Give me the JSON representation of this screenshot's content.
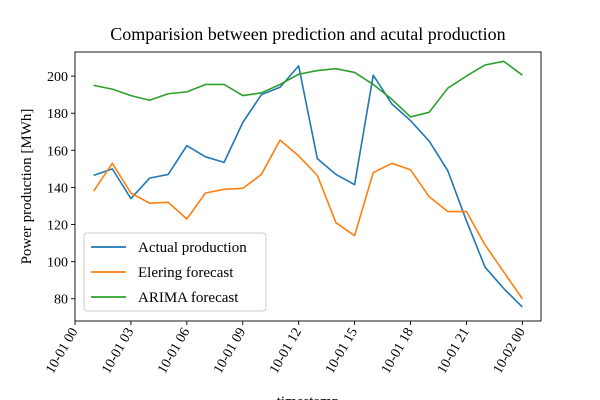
{
  "chart_data": {
    "type": "line",
    "title": "Comparision between prediction and acutal production",
    "xlabel": "timestamp",
    "ylabel": "Power production [MWh]",
    "x": [
      "10-01 01",
      "10-01 02",
      "10-01 03",
      "10-01 04",
      "10-01 05",
      "10-01 06",
      "10-01 07",
      "10-01 08",
      "10-01 09",
      "10-01 10",
      "10-01 11",
      "10-01 12",
      "10-01 13",
      "10-01 14",
      "10-01 15",
      "10-01 16",
      "10-01 17",
      "10-01 18",
      "10-01 19",
      "10-01 20",
      "10-01 21",
      "10-01 22",
      "10-01 23",
      "10-02 00"
    ],
    "xticks": [
      "10-01 00",
      "10-01 03",
      "10-01 06",
      "10-01 09",
      "10-01 12",
      "10-01 15",
      "10-01 18",
      "10-01 21",
      "10-02 00"
    ],
    "yticks": [
      80,
      100,
      120,
      140,
      160,
      180,
      200
    ],
    "ylim": [
      68,
      213
    ],
    "legend_position": "lower-left",
    "series": [
      {
        "name": "Actual production",
        "color": "#1f77b4",
        "values": [
          146.5,
          150,
          134,
          145,
          147,
          162.5,
          156.5,
          153.5,
          175,
          190,
          194,
          205.5,
          155.5,
          147,
          141.5,
          200.5,
          185,
          176,
          165,
          149,
          122,
          97,
          85.5,
          75.5
        ]
      },
      {
        "name": "Elering forecast",
        "color": "#ff7f0e",
        "values": [
          138,
          153,
          137,
          131.5,
          132,
          123,
          137,
          139,
          139.5,
          147,
          165.5,
          157,
          146.5,
          121,
          114,
          148,
          153,
          149.5,
          135,
          127,
          127,
          109,
          94.5,
          80
        ]
      },
      {
        "name": "ARIMA forecast",
        "color": "#2ca02c",
        "values": [
          195,
          193,
          189.5,
          187,
          190.5,
          191.5,
          195.5,
          195.5,
          189.5,
          191,
          195.5,
          201,
          203,
          204,
          202,
          195.5,
          187.5,
          178,
          180.5,
          193.5,
          200,
          206,
          208,
          200.5
        ]
      }
    ]
  }
}
